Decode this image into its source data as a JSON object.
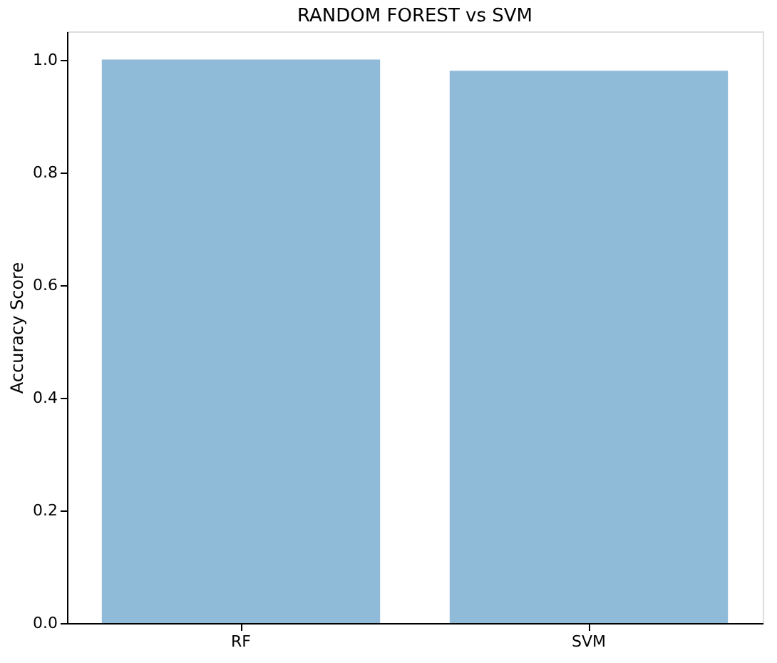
{
  "chart_data": {
    "type": "bar",
    "title": "RANDOM FOREST vs SVM",
    "ylabel": "Accuracy Score",
    "categories": [
      "RF",
      "SVM"
    ],
    "values": [
      1.0,
      0.98
    ],
    "color": "#8fbbd9",
    "ylim": [
      0,
      1.05
    ],
    "yticks": [
      {
        "value": 0,
        "label": "0.0"
      },
      {
        "value": 0.2,
        "label": "0.2"
      },
      {
        "value": 0.4,
        "label": "0.4"
      },
      {
        "value": 0.6,
        "label": "0.6"
      },
      {
        "value": 0.8,
        "label": "0.8"
      },
      {
        "value": 1,
        "label": "1.0"
      }
    ],
    "grid": false
  }
}
